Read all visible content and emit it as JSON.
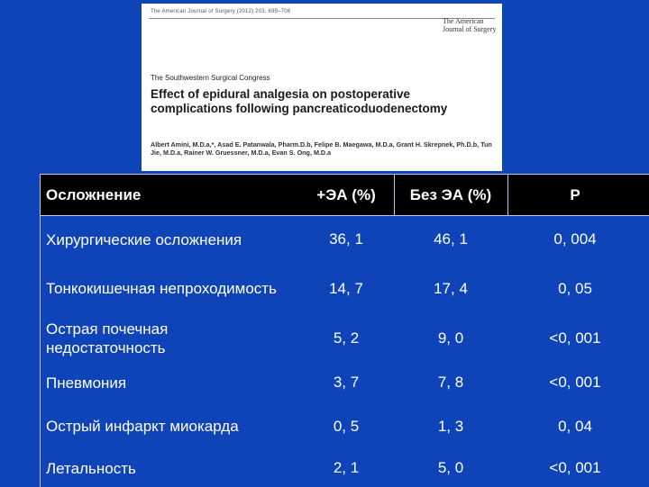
{
  "paper": {
    "running_head": "The American Journal of Surgery (2012) 203, 699–706",
    "journal_logo": "The American Journal of Surgery",
    "congress": "The Southwestern Surgical Congress",
    "title": "Effect of epidural analgesia on postoperative complications following pancreaticoduodenectomy",
    "authors": "Albert Amini, M.D.a,*, Asad E. Patanwala, Pharm.D.b, Felipe B. Maegawa, M.D.a, Grant H. Skrepnek, Ph.D.b, Tun Jie, M.D.a, Rainer W. Gruessner, M.D.a, Evan S. Ong, M.D.a"
  },
  "table": {
    "headers": [
      "Осложнение",
      "+ЭА (%)",
      "Без ЭА (%)",
      "P"
    ],
    "rows": [
      [
        "Хирургические осложнения",
        "36, 1",
        "46, 1",
        "0, 004"
      ],
      [
        "Тонкокишечная непроходимость",
        "14, 7",
        "17, 4",
        "0, 05"
      ],
      [
        "Острая почечная недостаточность",
        "5, 2",
        "9, 0",
        "<0, 001"
      ],
      [
        "Пневмония",
        "3, 7",
        "7, 8",
        "<0, 001"
      ],
      [
        "Острый инфаркт миокарда",
        "0, 5",
        "1, 3",
        "0, 04"
      ],
      [
        "Летальность",
        "2, 1",
        "5, 0",
        "<0, 001"
      ]
    ]
  },
  "colors": {
    "background": "#0f44b8",
    "header_bg": "#000000",
    "text": "#ffffff",
    "grid": "#b9c8ef"
  }
}
